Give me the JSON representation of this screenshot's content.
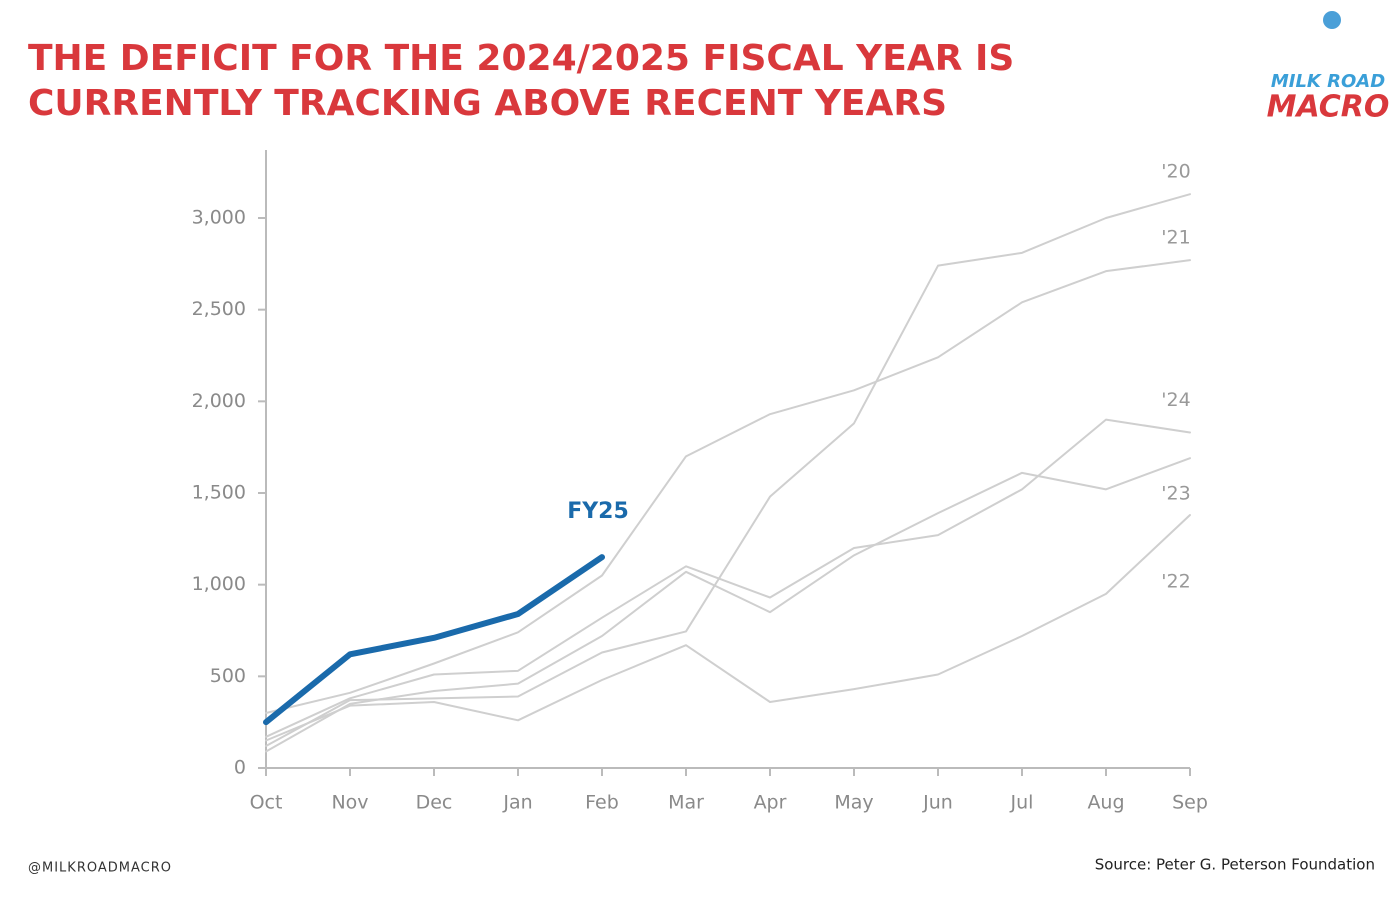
{
  "chart_data": {
    "type": "line",
    "title": [
      "THE DEFICIT FOR THE 2024/2025 FISCAL YEAR IS",
      "CURRENTLY TRACKING ABOVE RECENT YEARS"
    ],
    "categories": [
      "Oct",
      "Nov",
      "Dec",
      "Jan",
      "Feb",
      "Mar",
      "Apr",
      "May",
      "Jun",
      "Jul",
      "Aug",
      "Sep"
    ],
    "series": [
      {
        "name": "'20",
        "color": "#cfcfcf",
        "values": [
          120,
          370,
          380,
          390,
          630,
          745,
          1480,
          1880,
          2740,
          2810,
          3000,
          3130
        ]
      },
      {
        "name": "'21",
        "color": "#cfcfcf",
        "values": [
          300,
          410,
          570,
          740,
          1050,
          1700,
          1930,
          2060,
          2240,
          2540,
          2710,
          2770
        ]
      },
      {
        "name": "'24",
        "color": "#cfcfcf",
        "values": [
          170,
          380,
          510,
          530,
          820,
          1100,
          930,
          1200,
          1270,
          1520,
          1900,
          1830
        ]
      },
      {
        "name": "'23",
        "color": "#cfcfcf",
        "values": [
          90,
          350,
          420,
          460,
          720,
          1070,
          850,
          1160,
          1390,
          1610,
          1520,
          1690
        ]
      },
      {
        "name": "'22",
        "color": "#cfcfcf",
        "values": [
          150,
          340,
          360,
          260,
          480,
          670,
          360,
          430,
          510,
          720,
          950,
          1380
        ]
      },
      {
        "name": "FY25",
        "color": "#1a6aab",
        "values": [
          250,
          620,
          710,
          840,
          1150,
          null,
          null,
          null,
          null,
          null,
          null,
          null
        ]
      }
    ],
    "ylim": [
      0,
      3300
    ],
    "yticks": [
      0,
      500,
      {
        "value": 1000,
        "label": "1,000"
      },
      {
        "value": 1500,
        "label": "1,500"
      },
      {
        "value": 2000,
        "label": "2,000"
      },
      {
        "value": 2500,
        "label": "2,500"
      },
      {
        "value": 3000,
        "label": "3,000"
      }
    ],
    "logo": [
      "MILK ROAD",
      "MACRO"
    ],
    "handle": "@MILKROADMACRO",
    "source": "Source: Peter G. Peterson Foundation"
  }
}
